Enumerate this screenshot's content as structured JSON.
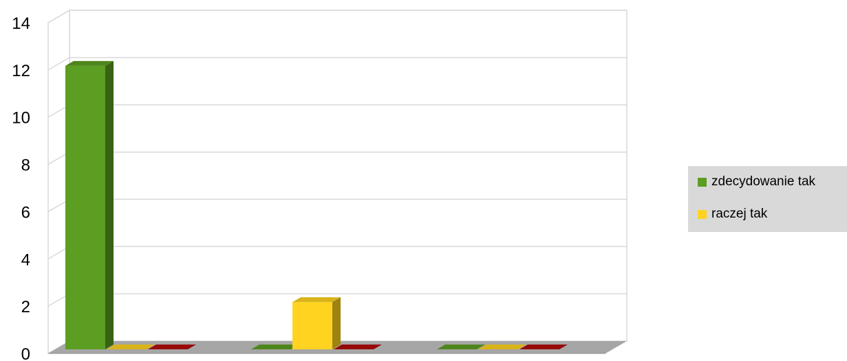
{
  "chart_data": {
    "type": "bar",
    "title": "",
    "xlabel": "",
    "ylabel": "",
    "categories": [
      "",
      "",
      ""
    ],
    "ylim": [
      0,
      14
    ],
    "yticks": [
      0,
      2,
      4,
      6,
      8,
      10,
      12,
      14
    ],
    "grid": true,
    "legend_position": "right",
    "series": [
      {
        "name": "zdecydowanie tak",
        "values": [
          12,
          0,
          0
        ],
        "color": "#5c9e21"
      },
      {
        "name": "raczej tak",
        "values": [
          0,
          2,
          0
        ],
        "color": "#ffd31f"
      },
      {
        "name": "",
        "values": [
          0,
          0,
          0
        ],
        "color": "#b00c0c"
      }
    ]
  },
  "legend": {
    "items": [
      "zdecydowanie tak",
      "raczej tak"
    ]
  }
}
